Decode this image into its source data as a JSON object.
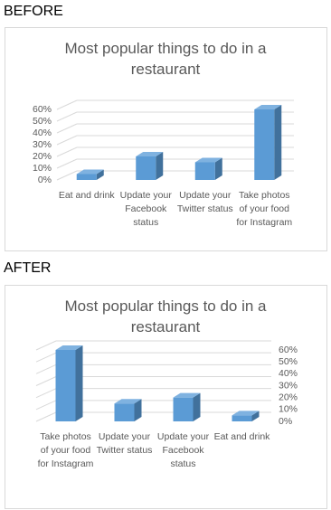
{
  "headings": [
    "BEFORE",
    "AFTER"
  ],
  "chart_data": [
    {
      "type": "bar3d",
      "title": "Most popular things to do in a restaurant",
      "categories": [
        "Eat and drink",
        "Update your Facebook status",
        "Update your Twitter status",
        "Take photos of your food for Instagram"
      ],
      "values": [
        5,
        20,
        15,
        60
      ],
      "color": "#5b9bd5",
      "ylim": [
        0,
        60
      ],
      "yticks": [
        {
          "value": 0,
          "label": "0%"
        },
        {
          "value": 10,
          "label": "10%"
        },
        {
          "value": 20,
          "label": "20%"
        },
        {
          "value": 30,
          "label": "30%"
        },
        {
          "value": 40,
          "label": "40%"
        },
        {
          "value": 50,
          "label": "50%"
        },
        {
          "value": 60,
          "label": "60%"
        }
      ],
      "grid": true,
      "y_axis_side": "left"
    },
    {
      "type": "bar3d",
      "title": "Most popular things to do in a restaurant",
      "categories": [
        "Take photos of your food for Instagram",
        "Update your Twitter status",
        "Update your Facebook status",
        "Eat and drink"
      ],
      "values": [
        60,
        15,
        20,
        5
      ],
      "color": "#5b9bd5",
      "ylim": [
        0,
        60
      ],
      "yticks": [
        {
          "value": 0,
          "label": "0%"
        },
        {
          "value": 10,
          "label": "10%"
        },
        {
          "value": 20,
          "label": "20%"
        },
        {
          "value": 30,
          "label": "30%"
        },
        {
          "value": 40,
          "label": "40%"
        },
        {
          "value": 50,
          "label": "50%"
        },
        {
          "value": 60,
          "label": "60%"
        }
      ],
      "grid": true,
      "y_axis_side": "right"
    }
  ]
}
